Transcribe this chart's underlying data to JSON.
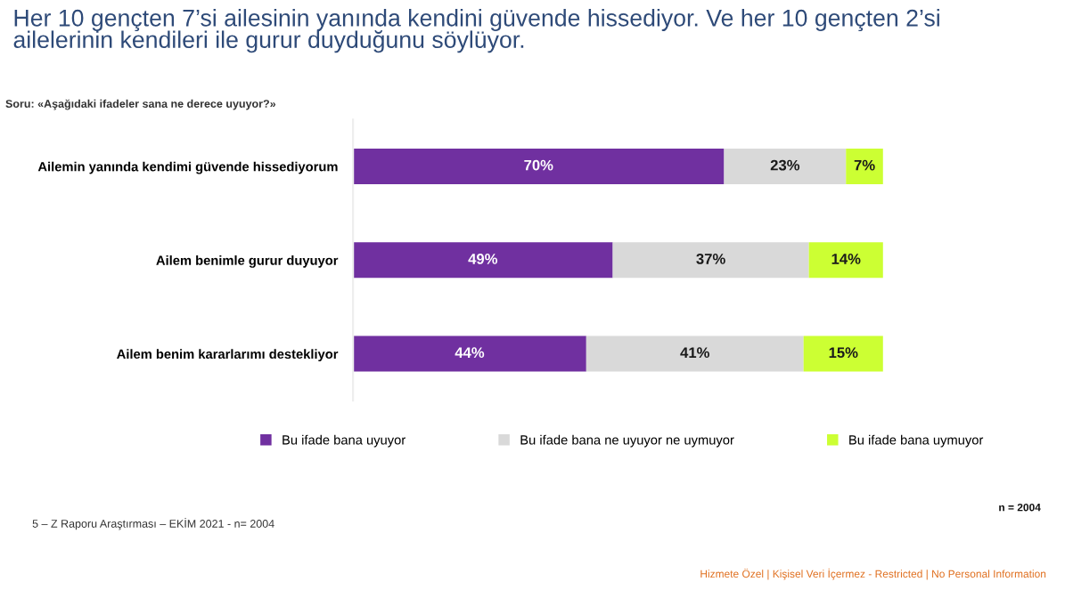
{
  "chart_data": {
    "type": "bar",
    "orientation": "horizontal",
    "stacked": true,
    "grid": false,
    "legend": "bottom",
    "title": "Her 10 gençten 7’si ailesinin yanında kendini güvende hissediyor. Ve her 10 gençten 2’si\nailelerinin kendileri ile gurur duyduğunu söylüyor.",
    "subtitle": "Soru: «Aşağıdaki ifadeler sana ne derece uyuyor?»",
    "categories": [
      "Ailemin yanında kendimi güvende hissediyorum",
      "Ailem benimle gurur duyuyor",
      "Ailem benim kararlarımı destekliyor"
    ],
    "series": [
      {
        "name": "Bu ifade bana uyuyor",
        "color": "#7030a0",
        "values": [
          70,
          49,
          44
        ],
        "value_labels": [
          "70%",
          "49%",
          "44%"
        ]
      },
      {
        "name": "Bu ifade bana ne uyuyor ne uymuyor",
        "color": "#d9d9d9",
        "values": [
          23,
          37,
          41
        ],
        "value_labels": [
          "23%",
          "37%",
          "41%"
        ]
      },
      {
        "name": "Bu ifade bana uymuyor",
        "color": "#ccff33",
        "values": [
          7,
          14,
          15
        ],
        "value_labels": [
          "7%",
          "14%",
          "15%"
        ]
      }
    ],
    "annotations": [
      "5 – Z Raporu Araştırması – EKİM 2021 - n= 2004",
      "n = 2004",
      "Hizmete Özel | Kişisel Veri İçermez - Restricted | No Personal Information"
    ]
  }
}
